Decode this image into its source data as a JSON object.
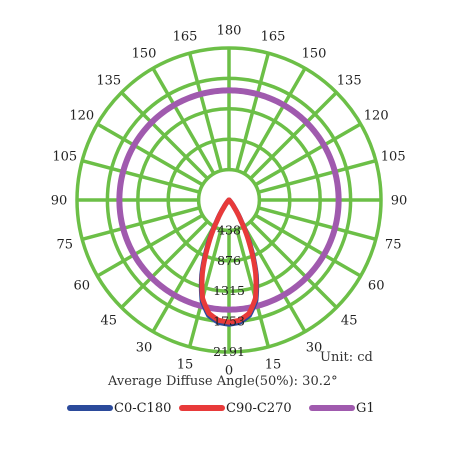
{
  "chart_data": {
    "type": "polar",
    "subtype": "light-distribution",
    "unit_label": "Unit: cd",
    "summary_label": "Average Diffuse Angle(50%): 30.2°",
    "angle_labels_left": [
      "180",
      "165",
      "150",
      "135",
      "120",
      "105",
      "90",
      "75",
      "60",
      "45",
      "30",
      "15",
      "0"
    ],
    "angle_labels_right": [
      "165",
      "150",
      "135",
      "120",
      "105",
      "90",
      "75",
      "60",
      "45",
      "30",
      "15"
    ],
    "angle_values_left": [
      180,
      165,
      150,
      135,
      120,
      105,
      90,
      75,
      60,
      45,
      30,
      15,
      0
    ],
    "angle_values_right": [
      165,
      150,
      135,
      120,
      105,
      90,
      75,
      60,
      45,
      30,
      15
    ],
    "radial_labels": [
      "438",
      "876",
      "1315",
      "1753",
      "2191"
    ],
    "radial_values": [
      438,
      876,
      1315,
      1753,
      2191
    ],
    "r_max": 2191,
    "grid_color": "#6cbf47",
    "series": [
      {
        "name": "C0-C180",
        "color": "#2b4a9b",
        "angles": [
          0,
          5,
          10,
          15,
          20,
          25,
          30,
          35,
          40,
          45,
          60,
          90
        ],
        "values": [
          1790,
          1770,
          1690,
          1500,
          1150,
          730,
          360,
          140,
          50,
          15,
          3,
          0
        ]
      },
      {
        "name": "C90-C270",
        "color": "#e83a3a",
        "angles": [
          0,
          5,
          10,
          15,
          20,
          25,
          30,
          35,
          40,
          45,
          60,
          90
        ],
        "values": [
          1760,
          1740,
          1660,
          1470,
          1120,
          700,
          340,
          130,
          45,
          12,
          3,
          0
        ]
      },
      {
        "name": "G1",
        "color": "#a05aae",
        "angles": [
          0,
          45,
          90,
          135,
          180
        ],
        "values": [
          1580,
          1580,
          1580,
          1580,
          1580
        ]
      }
    ]
  }
}
